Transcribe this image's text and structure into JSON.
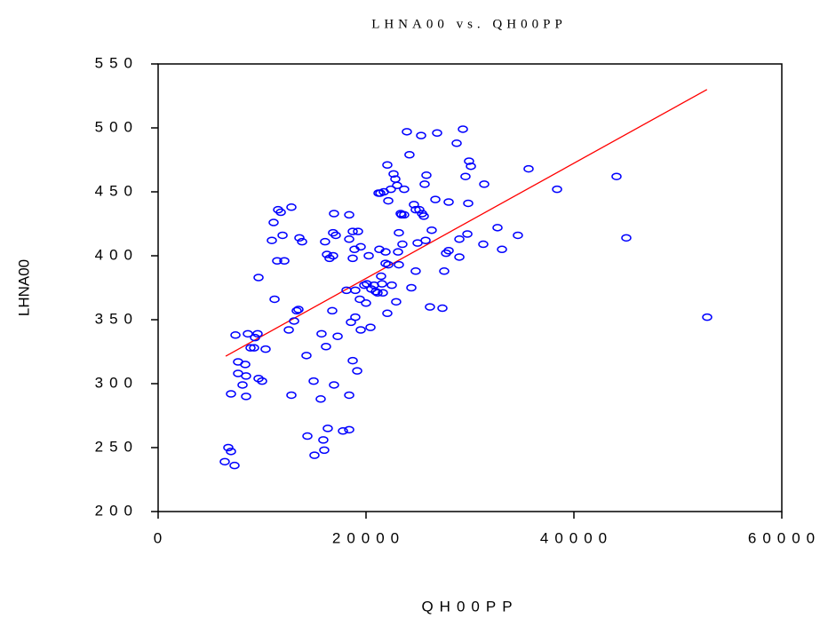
{
  "chart_data": {
    "type": "scatter",
    "title": "LHNA00 vs. QH00PP",
    "x_label": "QH00PP",
    "y_label": "LHNA00",
    "xlim": [
      0,
      60000
    ],
    "ylim": [
      200,
      550
    ],
    "xticks": [
      0,
      20000,
      40000,
      60000
    ],
    "yticks": [
      200,
      250,
      300,
      350,
      400,
      450,
      500,
      550
    ],
    "points": {
      "color": "#0000ff",
      "x": [
        6410,
        6750,
        7010,
        7350,
        7440,
        7010,
        7690,
        7690,
        8120,
        8380,
        8460,
        8460,
        8630,
        8890,
        9230,
        9320,
        9570,
        9660,
        10000,
        10340,
        9660,
        10940,
        11110,
        11540,
        11800,
        11970,
        11450,
        12140,
        11200,
        12820,
        13590,
        13850,
        12570,
        13080,
        13330,
        13500,
        12820,
        14270,
        14360,
        14960,
        15040,
        15640,
        15720,
        15980,
        15890,
        16150,
        16320,
        16060,
        16240,
        16490,
        16830,
        16750,
        16830,
        17090,
        16920,
        16920,
        17270,
        17780,
        18120,
        18380,
        18380,
        18380,
        18380,
        18550,
        18720,
        18720,
        18720,
        18890,
        18970,
        19150,
        19230,
        18970,
        19400,
        19490,
        19490,
        19830,
        20080,
        20000,
        20260,
        20430,
        20510,
        20770,
        20940,
        21110,
        21200,
        21370,
        21280,
        21450,
        21620,
        21710,
        21540,
        21880,
        21880,
        22050,
        22140,
        22050,
        22390,
        22140,
        22480,
        22650,
        22820,
        22900,
        22990,
        23080,
        23160,
        23160,
        23330,
        23420,
        23500,
        23670,
        23670,
        23930,
        24180,
        24360,
        24610,
        24780,
        24780,
        24960,
        25130,
        25300,
        25390,
        25640,
        25560,
        25730,
        25810,
        26150,
        26320,
        26670,
        26840,
        27350,
        27520,
        27700,
        27950,
        27950,
        28720,
        28980,
        28980,
        29320,
        29570,
        29750,
        29910,
        30090,
        29830,
        31370,
        31280,
        32650,
        33080,
        34610,
        35640,
        38380,
        44100,
        45040,
        52820
      ],
      "y": [
        239,
        250,
        247,
        236,
        338,
        292,
        317,
        308,
        299,
        315,
        306,
        290,
        339,
        328,
        328,
        336,
        339,
        304,
        302,
        327,
        383,
        412,
        426,
        436,
        434,
        416,
        396,
        396,
        366,
        438,
        414,
        411,
        342,
        349,
        357,
        358,
        291,
        322,
        259,
        302,
        244,
        288,
        339,
        248,
        256,
        329,
        265,
        411,
        401,
        398,
        400,
        357,
        418,
        416,
        433,
        299,
        337,
        263,
        373,
        413,
        432,
        264,
        291,
        348,
        419,
        318,
        398,
        405,
        373,
        310,
        419,
        352,
        366,
        342,
        407,
        377,
        378,
        363,
        400,
        344,
        374,
        377,
        372,
        371,
        449,
        449,
        405,
        384,
        371,
        450,
        378,
        394,
        403,
        471,
        393,
        355,
        452,
        443,
        377,
        464,
        460,
        364,
        455,
        403,
        418,
        393,
        433,
        432,
        409,
        432,
        452,
        497,
        479,
        375,
        440,
        388,
        436,
        410,
        436,
        494,
        433,
        456,
        431,
        412,
        463,
        360,
        420,
        444,
        496,
        359,
        388,
        402,
        404,
        442,
        488,
        413,
        399,
        499,
        462,
        417,
        474,
        470,
        441,
        456,
        409,
        422,
        405,
        416,
        468,
        452,
        462,
        414,
        352
      ]
    },
    "fit": {
      "color": "#ff0000",
      "x": [
        6500,
        52800
      ],
      "y": [
        321.5,
        530
      ]
    }
  }
}
